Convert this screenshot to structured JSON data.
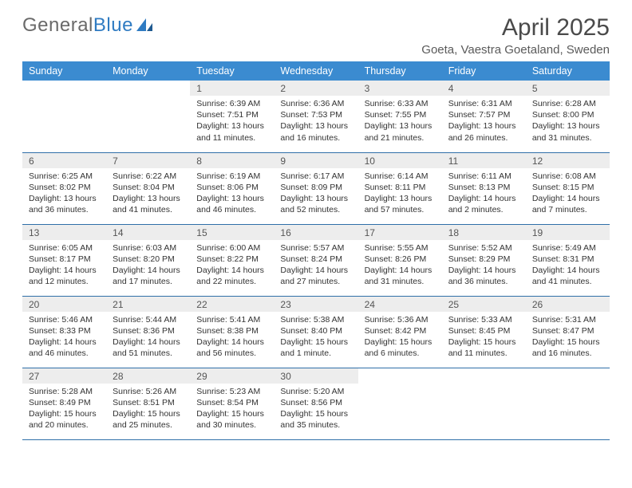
{
  "logo": {
    "text1": "General",
    "text2": "Blue"
  },
  "title": "April 2025",
  "location": "Goeta, Vaestra Goetaland, Sweden",
  "colors": {
    "header_bg": "#3b8bd0",
    "header_text": "#ffffff",
    "daynum_bg": "#ededed",
    "row_divider": "#2f6fa8",
    "page_bg": "#ffffff",
    "text": "#333333",
    "logo_gray": "#6a6a6a",
    "logo_blue": "#2f7bc2"
  },
  "day_headers": [
    "Sunday",
    "Monday",
    "Tuesday",
    "Wednesday",
    "Thursday",
    "Friday",
    "Saturday"
  ],
  "weeks": [
    [
      {
        "empty": true
      },
      {
        "empty": true
      },
      {
        "num": "1",
        "sunrise": "6:39 AM",
        "sunset": "7:51 PM",
        "daylight": "13 hours and 11 minutes."
      },
      {
        "num": "2",
        "sunrise": "6:36 AM",
        "sunset": "7:53 PM",
        "daylight": "13 hours and 16 minutes."
      },
      {
        "num": "3",
        "sunrise": "6:33 AM",
        "sunset": "7:55 PM",
        "daylight": "13 hours and 21 minutes."
      },
      {
        "num": "4",
        "sunrise": "6:31 AM",
        "sunset": "7:57 PM",
        "daylight": "13 hours and 26 minutes."
      },
      {
        "num": "5",
        "sunrise": "6:28 AM",
        "sunset": "8:00 PM",
        "daylight": "13 hours and 31 minutes."
      }
    ],
    [
      {
        "num": "6",
        "sunrise": "6:25 AM",
        "sunset": "8:02 PM",
        "daylight": "13 hours and 36 minutes."
      },
      {
        "num": "7",
        "sunrise": "6:22 AM",
        "sunset": "8:04 PM",
        "daylight": "13 hours and 41 minutes."
      },
      {
        "num": "8",
        "sunrise": "6:19 AM",
        "sunset": "8:06 PM",
        "daylight": "13 hours and 46 minutes."
      },
      {
        "num": "9",
        "sunrise": "6:17 AM",
        "sunset": "8:09 PM",
        "daylight": "13 hours and 52 minutes."
      },
      {
        "num": "10",
        "sunrise": "6:14 AM",
        "sunset": "8:11 PM",
        "daylight": "13 hours and 57 minutes."
      },
      {
        "num": "11",
        "sunrise": "6:11 AM",
        "sunset": "8:13 PM",
        "daylight": "14 hours and 2 minutes."
      },
      {
        "num": "12",
        "sunrise": "6:08 AM",
        "sunset": "8:15 PM",
        "daylight": "14 hours and 7 minutes."
      }
    ],
    [
      {
        "num": "13",
        "sunrise": "6:05 AM",
        "sunset": "8:17 PM",
        "daylight": "14 hours and 12 minutes."
      },
      {
        "num": "14",
        "sunrise": "6:03 AM",
        "sunset": "8:20 PM",
        "daylight": "14 hours and 17 minutes."
      },
      {
        "num": "15",
        "sunrise": "6:00 AM",
        "sunset": "8:22 PM",
        "daylight": "14 hours and 22 minutes."
      },
      {
        "num": "16",
        "sunrise": "5:57 AM",
        "sunset": "8:24 PM",
        "daylight": "14 hours and 27 minutes."
      },
      {
        "num": "17",
        "sunrise": "5:55 AM",
        "sunset": "8:26 PM",
        "daylight": "14 hours and 31 minutes."
      },
      {
        "num": "18",
        "sunrise": "5:52 AM",
        "sunset": "8:29 PM",
        "daylight": "14 hours and 36 minutes."
      },
      {
        "num": "19",
        "sunrise": "5:49 AM",
        "sunset": "8:31 PM",
        "daylight": "14 hours and 41 minutes."
      }
    ],
    [
      {
        "num": "20",
        "sunrise": "5:46 AM",
        "sunset": "8:33 PM",
        "daylight": "14 hours and 46 minutes."
      },
      {
        "num": "21",
        "sunrise": "5:44 AM",
        "sunset": "8:36 PM",
        "daylight": "14 hours and 51 minutes."
      },
      {
        "num": "22",
        "sunrise": "5:41 AM",
        "sunset": "8:38 PM",
        "daylight": "14 hours and 56 minutes."
      },
      {
        "num": "23",
        "sunrise": "5:38 AM",
        "sunset": "8:40 PM",
        "daylight": "15 hours and 1 minute."
      },
      {
        "num": "24",
        "sunrise": "5:36 AM",
        "sunset": "8:42 PM",
        "daylight": "15 hours and 6 minutes."
      },
      {
        "num": "25",
        "sunrise": "5:33 AM",
        "sunset": "8:45 PM",
        "daylight": "15 hours and 11 minutes."
      },
      {
        "num": "26",
        "sunrise": "5:31 AM",
        "sunset": "8:47 PM",
        "daylight": "15 hours and 16 minutes."
      }
    ],
    [
      {
        "num": "27",
        "sunrise": "5:28 AM",
        "sunset": "8:49 PM",
        "daylight": "15 hours and 20 minutes."
      },
      {
        "num": "28",
        "sunrise": "5:26 AM",
        "sunset": "8:51 PM",
        "daylight": "15 hours and 25 minutes."
      },
      {
        "num": "29",
        "sunrise": "5:23 AM",
        "sunset": "8:54 PM",
        "daylight": "15 hours and 30 minutes."
      },
      {
        "num": "30",
        "sunrise": "5:20 AM",
        "sunset": "8:56 PM",
        "daylight": "15 hours and 35 minutes."
      },
      {
        "empty": true
      },
      {
        "empty": true
      },
      {
        "empty": true
      }
    ]
  ],
  "labels": {
    "sunrise": "Sunrise:",
    "sunset": "Sunset:",
    "daylight": "Daylight:"
  }
}
